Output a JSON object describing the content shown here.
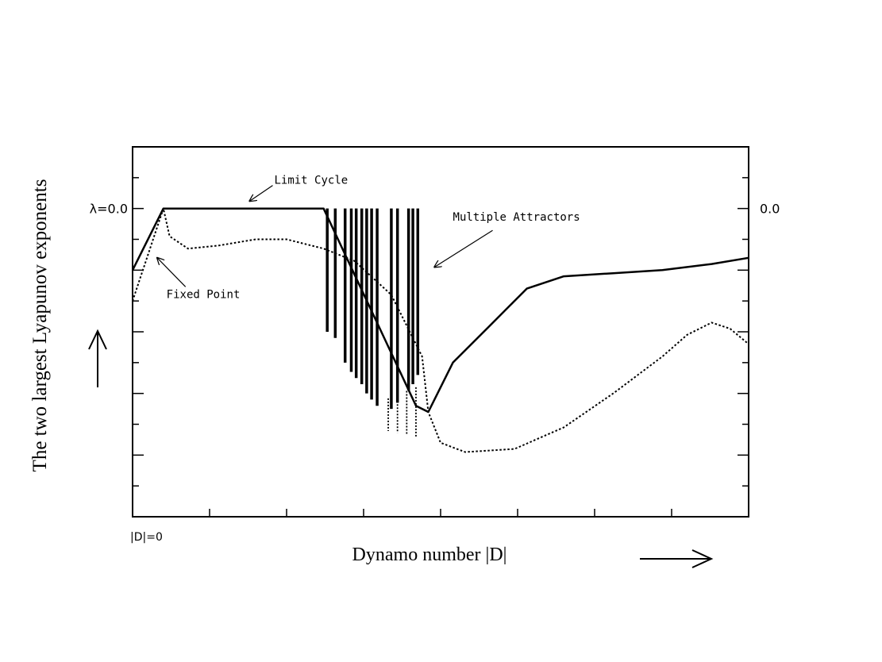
{
  "chart_data": {
    "type": "line",
    "xlabel": "Dynamo number |D|",
    "ylabel": "The two largest Lyapunov exponents",
    "x_origin_label": "|D|=0",
    "y_zero_label_left": "λ=0.0",
    "y_zero_label_right": "0.0",
    "xlim": [
      0,
      100
    ],
    "ylim": [
      -5,
      1
    ],
    "x_ticks": [
      0,
      12.5,
      25,
      37.5,
      50,
      62.5,
      75,
      87.5,
      100
    ],
    "y_ticks": [
      -5,
      -4.5,
      -4,
      -3.5,
      -3,
      -2.5,
      -2,
      -1.5,
      -1,
      -0.5,
      0,
      0.5,
      1
    ],
    "grid": false,
    "series": [
      {
        "style": "solid",
        "x": [
          0,
          5,
          31,
          46,
          48,
          52,
          58,
          64,
          70,
          78,
          86,
          94,
          100
        ],
        "y": [
          -1.0,
          0.0,
          0.0,
          -3.2,
          -3.3,
          -2.5,
          -1.9,
          -1.3,
          -1.1,
          -1.05,
          -1.0,
          -0.9,
          -0.8
        ],
        "spikes": [
          {
            "x": 31.6,
            "y": -2.0
          },
          {
            "x": 32.9,
            "y": -2.1
          },
          {
            "x": 34.5,
            "y": -2.5
          },
          {
            "x": 35.5,
            "y": -2.65
          },
          {
            "x": 36.3,
            "y": -2.75
          },
          {
            "x": 37.2,
            "y": -2.85
          },
          {
            "x": 38.0,
            "y": -3.0
          },
          {
            "x": 38.8,
            "y": -3.1
          },
          {
            "x": 39.7,
            "y": -3.2
          },
          {
            "x": 42.0,
            "y": -3.25
          },
          {
            "x": 43.0,
            "y": -3.15
          },
          {
            "x": 44.8,
            "y": -2.95
          },
          {
            "x": 45.5,
            "y": -2.85
          },
          {
            "x": 46.3,
            "y": -2.7
          }
        ]
      },
      {
        "style": "dotted",
        "x": [
          0,
          5,
          6,
          9,
          14,
          20,
          25,
          31,
          36,
          42,
          47,
          48,
          50,
          54,
          62,
          70,
          78,
          86,
          90,
          94,
          97,
          100
        ],
        "y": [
          -1.5,
          0.0,
          -0.45,
          -0.65,
          -0.6,
          -0.5,
          -0.5,
          -0.65,
          -0.85,
          -1.4,
          -2.4,
          -3.3,
          -3.8,
          -3.95,
          -3.9,
          -3.55,
          -3.0,
          -2.4,
          -2.05,
          -1.85,
          -1.95,
          -2.2
        ]
      }
    ],
    "annotations": [
      {
        "text": "Limit Cycle",
        "x": 23,
        "y": 0.4,
        "arrow_to": {
          "x": 19,
          "y": 0.12
        }
      },
      {
        "text": "Multiple Attractors",
        "x": 52,
        "y": -0.2,
        "arrow_to": {
          "x": 49,
          "y": -0.95
        }
      },
      {
        "text": "Fixed Point",
        "x": 5.5,
        "y": -1.45,
        "arrow_to": {
          "x": 4,
          "y": -0.8
        }
      }
    ]
  }
}
